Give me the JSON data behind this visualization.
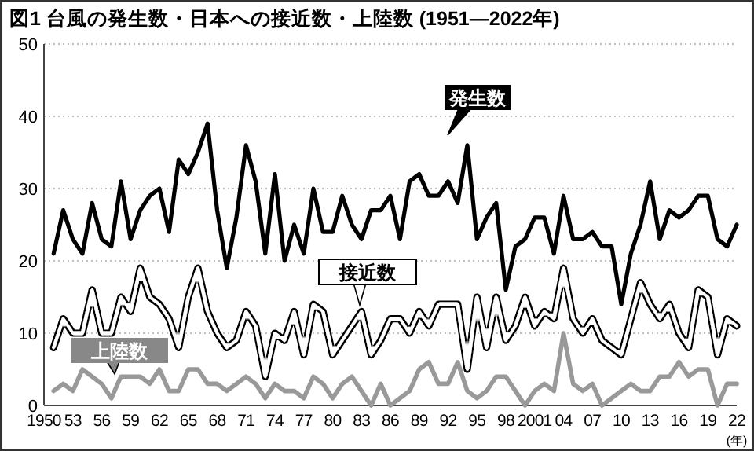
{
  "chart_data": {
    "type": "line",
    "title": "図1 台風の発生数・日本への接近数・上陸数 (1951—2022年)",
    "xlabel": "(年)",
    "x": [
      1951,
      1952,
      1953,
      1954,
      1955,
      1956,
      1957,
      1958,
      1959,
      1960,
      1961,
      1962,
      1963,
      1964,
      1965,
      1966,
      1967,
      1968,
      1969,
      1970,
      1971,
      1972,
      1973,
      1974,
      1975,
      1976,
      1977,
      1978,
      1979,
      1980,
      1981,
      1982,
      1983,
      1984,
      1985,
      1986,
      1987,
      1988,
      1989,
      1990,
      1991,
      1992,
      1993,
      1994,
      1995,
      1996,
      1997,
      1998,
      1999,
      2000,
      2001,
      2002,
      2003,
      2004,
      2005,
      2006,
      2007,
      2008,
      2009,
      2010,
      2011,
      2012,
      2013,
      2014,
      2015,
      2016,
      2017,
      2018,
      2019,
      2020,
      2021,
      2022
    ],
    "series": [
      {
        "name": "発生数",
        "color": "#000000",
        "values": [
          21,
          27,
          23,
          21,
          28,
          23,
          22,
          31,
          23,
          27,
          29,
          30,
          24,
          34,
          32,
          35,
          39,
          27,
          19,
          26,
          36,
          31,
          21,
          32,
          20,
          25,
          21,
          30,
          24,
          24,
          29,
          25,
          23,
          27,
          27,
          29,
          23,
          31,
          32,
          29,
          29,
          31,
          28,
          36,
          23,
          26,
          28,
          16,
          22,
          23,
          26,
          26,
          21,
          29,
          23,
          23,
          24,
          22,
          22,
          14,
          21,
          25,
          31,
          23,
          27,
          26,
          27,
          29,
          29,
          23,
          22,
          25
        ]
      },
      {
        "name": "接近数",
        "color": "#000000",
        "values": [
          8,
          12,
          10,
          10,
          16,
          10,
          10,
          15,
          13,
          19,
          15,
          14,
          12,
          8,
          15,
          19,
          13,
          10,
          8,
          9,
          13,
          11,
          4,
          10,
          9,
          13,
          7,
          14,
          13,
          7,
          9,
          11,
          13,
          7,
          9,
          12,
          12,
          10,
          13,
          11,
          14,
          14,
          14,
          5,
          15,
          8,
          15,
          9,
          11,
          15,
          11,
          13,
          12,
          19,
          12,
          10,
          12,
          9,
          8,
          7,
          12,
          17,
          14,
          12,
          14,
          10,
          8,
          16,
          15,
          7,
          12,
          11
        ]
      },
      {
        "name": "上陸数",
        "color": "#999999",
        "values": [
          2,
          3,
          2,
          5,
          4,
          3,
          1,
          4,
          4,
          4,
          3,
          5,
          2,
          2,
          5,
          5,
          3,
          3,
          2,
          3,
          4,
          3,
          1,
          3,
          2,
          2,
          1,
          4,
          3,
          1,
          3,
          4,
          2,
          0,
          3,
          0,
          1,
          2,
          5,
          6,
          3,
          3,
          6,
          2,
          1,
          2,
          4,
          4,
          2,
          0,
          2,
          3,
          2,
          10,
          3,
          2,
          3,
          0,
          1,
          2,
          3,
          2,
          2,
          4,
          4,
          6,
          4,
          5,
          5,
          0,
          3,
          3
        ]
      }
    ],
    "xlim": [
      1950,
      2022
    ],
    "xticks": [
      {
        "value": 1950,
        "label": "1950"
      },
      {
        "value": 1953,
        "label": "53"
      },
      {
        "value": 1956,
        "label": "56"
      },
      {
        "value": 1959,
        "label": "59"
      },
      {
        "value": 1962,
        "label": "62"
      },
      {
        "value": 1965,
        "label": "65"
      },
      {
        "value": 1968,
        "label": "68"
      },
      {
        "value": 1971,
        "label": "71"
      },
      {
        "value": 1974,
        "label": "74"
      },
      {
        "value": 1977,
        "label": "77"
      },
      {
        "value": 1980,
        "label": "80"
      },
      {
        "value": 1983,
        "label": "83"
      },
      {
        "value": 1986,
        "label": "86"
      },
      {
        "value": 1989,
        "label": "89"
      },
      {
        "value": 1992,
        "label": "92"
      },
      {
        "value": 1995,
        "label": "95"
      },
      {
        "value": 1998,
        "label": "98"
      },
      {
        "value": 2001,
        "label": "2001"
      },
      {
        "value": 2004,
        "label": "04"
      },
      {
        "value": 2007,
        "label": "07"
      },
      {
        "value": 2010,
        "label": "10"
      },
      {
        "value": 2013,
        "label": "13"
      },
      {
        "value": 2016,
        "label": "16"
      },
      {
        "value": 2019,
        "label": "19"
      },
      {
        "value": 2022,
        "label": "22"
      }
    ],
    "ylim": [
      0,
      50
    ],
    "yticks": [
      0,
      10,
      20,
      30,
      40,
      50
    ],
    "grid": "y",
    "legend": false,
    "marker": "none",
    "line_style": "solid"
  }
}
